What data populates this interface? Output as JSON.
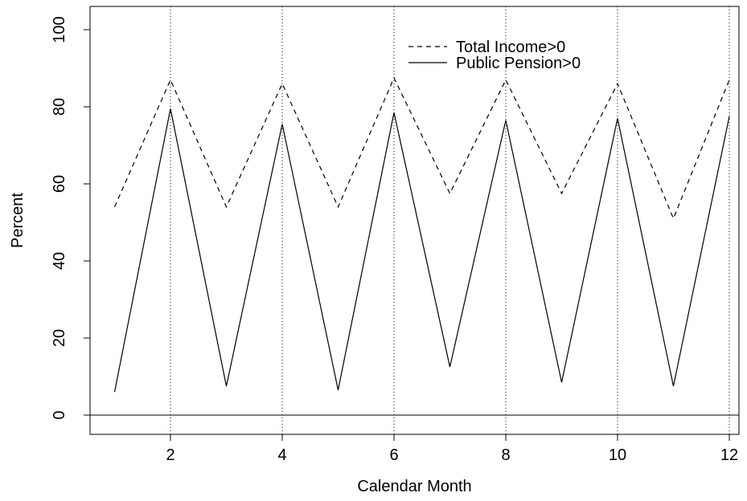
{
  "chart_data": {
    "type": "line",
    "xlabel": "Calendar Month",
    "ylabel": "Percent",
    "xlim": [
      1,
      12
    ],
    "ylim": [
      0,
      100
    ],
    "x_ticks": [
      2,
      4,
      6,
      8,
      10,
      12
    ],
    "y_ticks": [
      0,
      20,
      40,
      60,
      80,
      100
    ],
    "vertical_dotted_gridlines_at": [
      2,
      4,
      6,
      8,
      10,
      12
    ],
    "horizontal_reference_line_at": 0,
    "legend_position": "top-right",
    "x": [
      1,
      2,
      3,
      4,
      5,
      6,
      7,
      8,
      9,
      10,
      11,
      12
    ],
    "series": [
      {
        "name": "Total Income>0",
        "line_style": "dashed",
        "color": "#000000",
        "values": [
          54,
          87,
          54,
          86,
          54,
          87.5,
          57.5,
          87,
          57.5,
          86,
          51,
          87
        ]
      },
      {
        "name": "Public Pension>0",
        "line_style": "solid",
        "color": "#000000",
        "values": [
          6,
          79.5,
          7.5,
          75.5,
          6.5,
          78.5,
          12.5,
          76.5,
          8.5,
          77,
          7.5,
          77.5
        ]
      }
    ]
  }
}
